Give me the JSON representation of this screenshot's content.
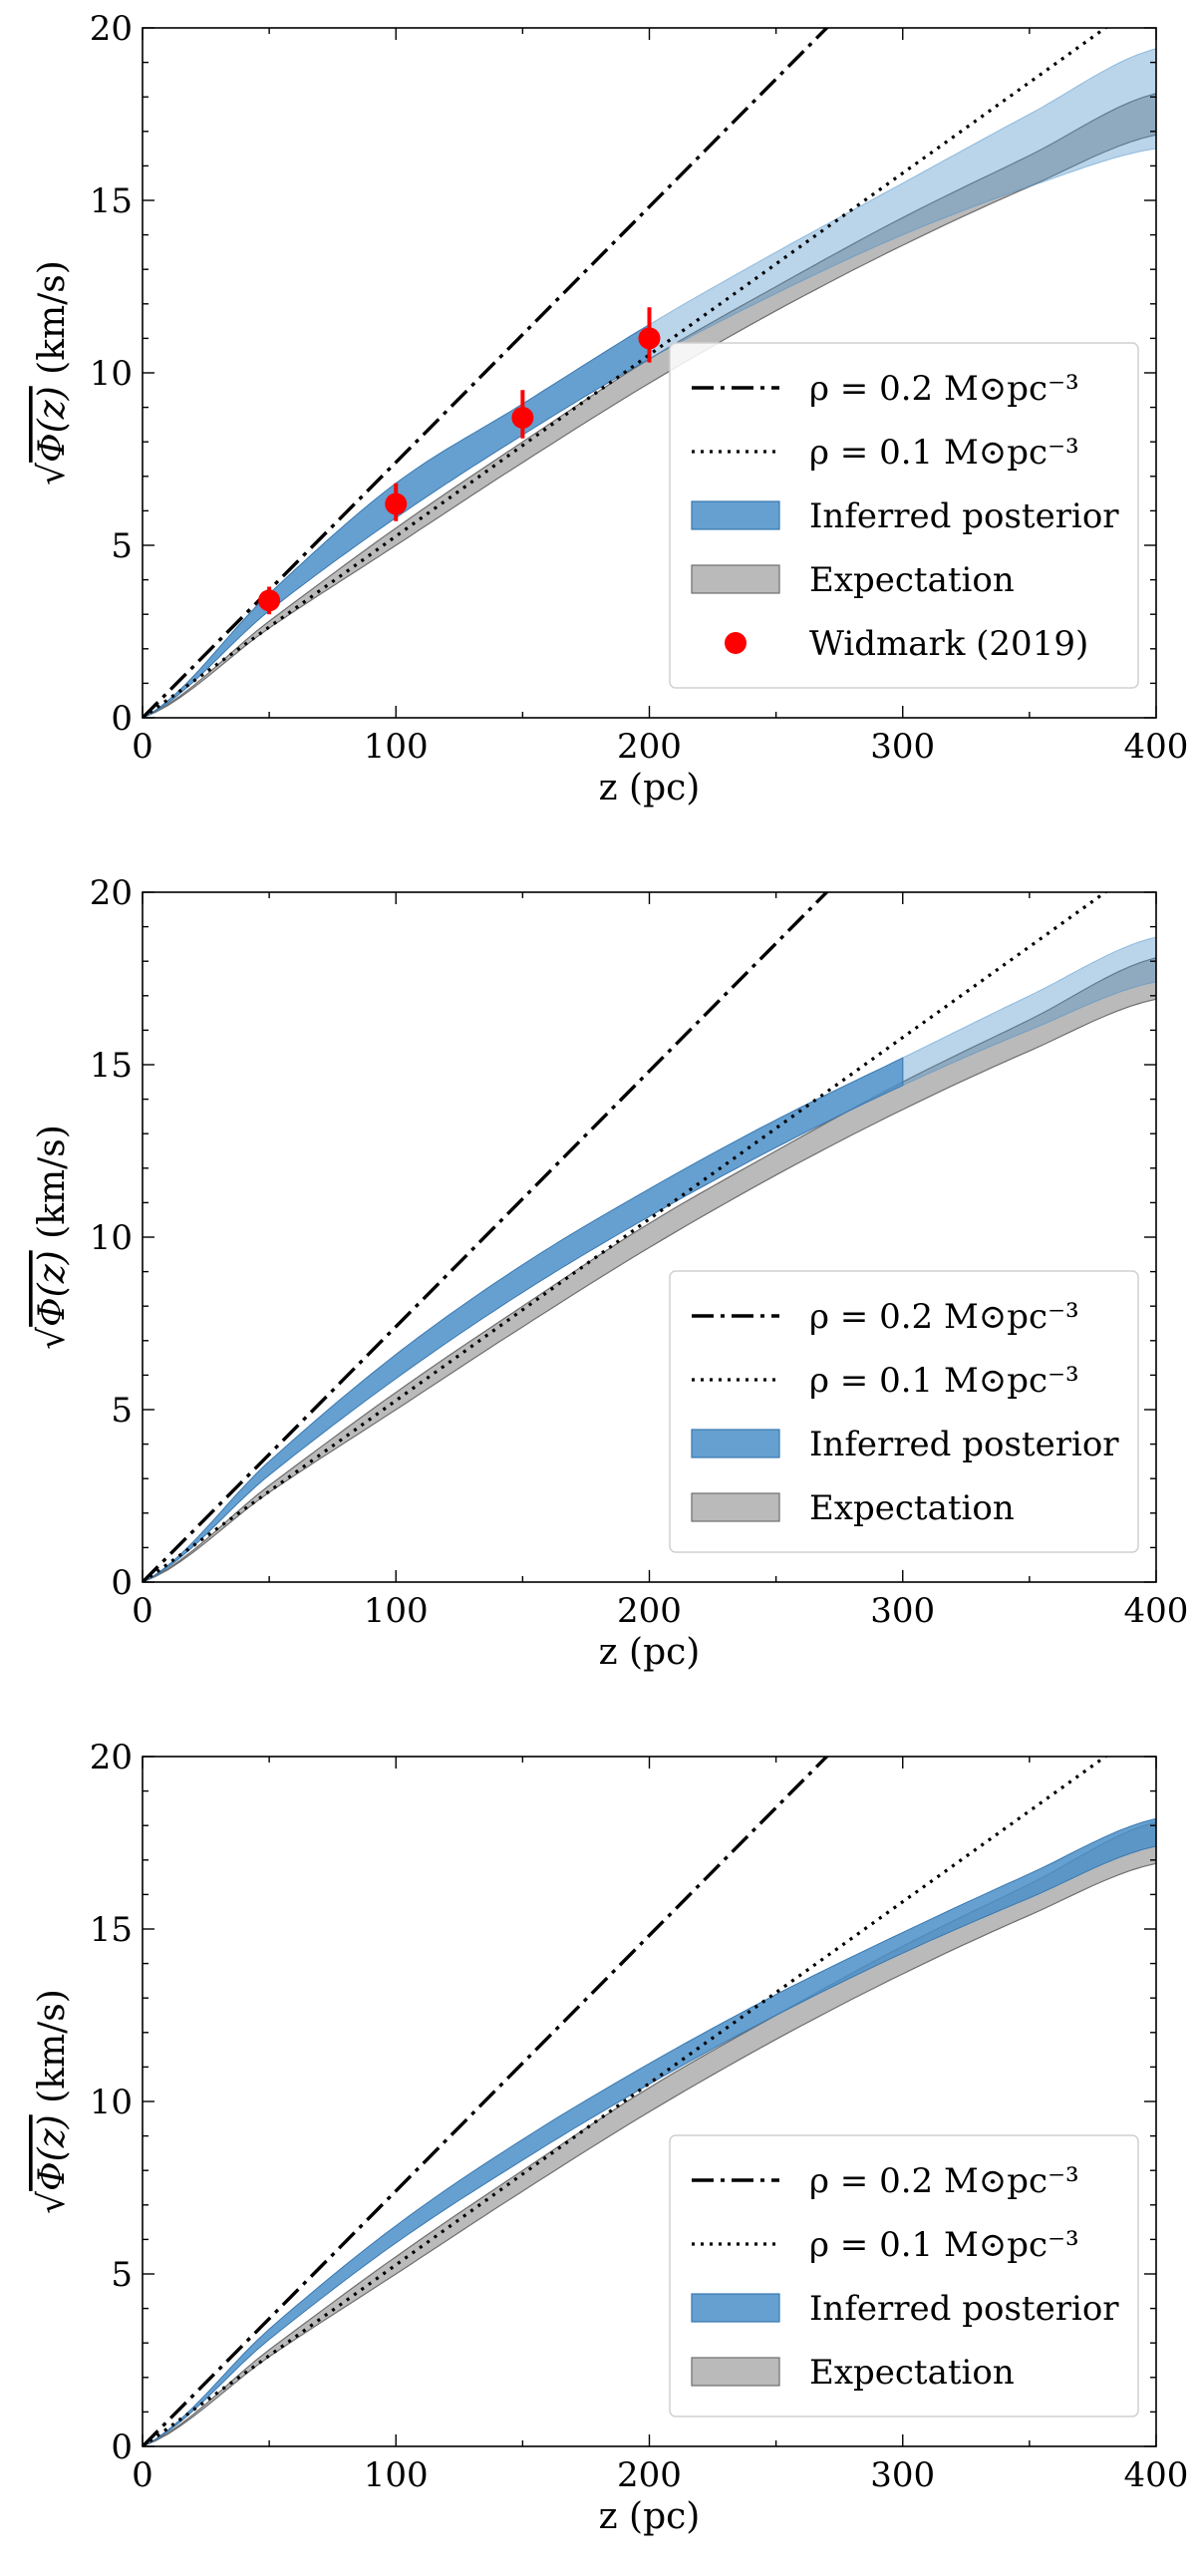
{
  "chart_data": [
    {
      "type": "line",
      "panel": "top",
      "title": "",
      "xlabel": "z (pc)",
      "ylabel_prefix": "√",
      "ylabel_over": "Φ(z)",
      "ylabel_suffix": " (km/s)",
      "xlim": [
        0,
        400
      ],
      "ylim": [
        0,
        20
      ],
      "xticks": [
        0,
        100,
        200,
        300,
        400
      ],
      "yticks": [
        0,
        5,
        10,
        15,
        20
      ],
      "grid": false,
      "legend_position": "lower-right",
      "series": [
        {
          "name": "ρ = 0.2 M⊙pc⁻³",
          "style": "dashdot",
          "x": [
            0,
            50,
            100,
            150,
            200,
            270
          ],
          "y": [
            0,
            3.7,
            7.4,
            11.1,
            14.8,
            20.0
          ]
        },
        {
          "name": "ρ = 0.1 M⊙pc⁻³",
          "style": "dotted",
          "x": [
            0,
            50,
            100,
            200,
            300,
            380
          ],
          "y": [
            0,
            2.6,
            5.3,
            10.5,
            15.8,
            20.0
          ]
        },
        {
          "name": "Inferred posterior",
          "style": "band",
          "solid_until": 200,
          "x": [
            0,
            50,
            100,
            150,
            200,
            250,
            300,
            350,
            400
          ],
          "lower": [
            0,
            3.1,
            5.8,
            8.2,
            10.4,
            12.3,
            14.0,
            15.4,
            16.5
          ],
          "upper": [
            0,
            3.6,
            6.8,
            9.1,
            11.4,
            13.5,
            15.5,
            17.5,
            19.4
          ]
        },
        {
          "name": "Expectation",
          "style": "band",
          "x": [
            0,
            50,
            100,
            150,
            200,
            250,
            300,
            350,
            400
          ],
          "lower": [
            0,
            2.6,
            5.0,
            7.4,
            9.7,
            11.8,
            13.7,
            15.4,
            16.9
          ],
          "upper": [
            0,
            2.8,
            5.5,
            8.0,
            10.4,
            12.5,
            14.5,
            16.3,
            18.1
          ]
        },
        {
          "name": "Widmark (2019)",
          "style": "points",
          "x": [
            50,
            100,
            150,
            200
          ],
          "y": [
            3.4,
            6.2,
            8.7,
            11.0
          ],
          "yerr_low": [
            3.0,
            5.7,
            8.1,
            10.3
          ],
          "yerr_high": [
            3.8,
            6.8,
            9.5,
            11.9
          ]
        }
      ]
    },
    {
      "type": "line",
      "panel": "middle",
      "title": "",
      "xlabel": "z (pc)",
      "ylabel_prefix": "√",
      "ylabel_over": "Φ(z)",
      "ylabel_suffix": " (km/s)",
      "xlim": [
        0,
        400
      ],
      "ylim": [
        0,
        20
      ],
      "xticks": [
        0,
        100,
        200,
        300,
        400
      ],
      "yticks": [
        0,
        5,
        10,
        15,
        20
      ],
      "grid": false,
      "legend_position": "lower-right",
      "series": [
        {
          "name": "ρ = 0.2 M⊙pc⁻³",
          "style": "dashdot",
          "x": [
            0,
            50,
            100,
            150,
            200,
            270
          ],
          "y": [
            0,
            3.7,
            7.4,
            11.1,
            14.8,
            20.0
          ]
        },
        {
          "name": "ρ = 0.1 M⊙pc⁻³",
          "style": "dotted",
          "x": [
            0,
            50,
            100,
            200,
            300,
            380
          ],
          "y": [
            0,
            2.6,
            5.3,
            10.5,
            15.8,
            20.0
          ]
        },
        {
          "name": "Inferred posterior",
          "style": "band",
          "solid_until": 300,
          "x": [
            0,
            50,
            100,
            150,
            200,
            250,
            300,
            350,
            400
          ],
          "lower": [
            0,
            3.1,
            5.9,
            8.4,
            10.6,
            12.6,
            14.4,
            16.0,
            17.4
          ],
          "upper": [
            0,
            3.5,
            6.6,
            9.2,
            11.4,
            13.4,
            15.2,
            17.0,
            18.7
          ]
        },
        {
          "name": "Expectation",
          "style": "band",
          "x": [
            0,
            50,
            100,
            150,
            200,
            250,
            300,
            350,
            400
          ],
          "lower": [
            0,
            2.6,
            5.0,
            7.4,
            9.7,
            11.8,
            13.7,
            15.4,
            16.9
          ],
          "upper": [
            0,
            2.8,
            5.5,
            8.0,
            10.4,
            12.5,
            14.5,
            16.3,
            18.1
          ]
        }
      ]
    },
    {
      "type": "line",
      "panel": "bottom",
      "title": "",
      "xlabel": "z (pc)",
      "ylabel_prefix": "√",
      "ylabel_over": "Φ(z)",
      "ylabel_suffix": " (km/s)",
      "xlim": [
        0,
        400
      ],
      "ylim": [
        0,
        20
      ],
      "xticks": [
        0,
        100,
        200,
        300,
        400
      ],
      "yticks": [
        0,
        5,
        10,
        15,
        20
      ],
      "grid": false,
      "legend_position": "lower-right",
      "series": [
        {
          "name": "ρ = 0.2 M⊙pc⁻³",
          "style": "dashdot",
          "x": [
            0,
            50,
            100,
            150,
            200,
            270
          ],
          "y": [
            0,
            3.7,
            7.4,
            11.1,
            14.8,
            20.0
          ]
        },
        {
          "name": "ρ = 0.1 M⊙pc⁻³",
          "style": "dotted",
          "x": [
            0,
            50,
            100,
            200,
            300,
            380
          ],
          "y": [
            0,
            2.6,
            5.3,
            10.5,
            15.8,
            20.0
          ]
        },
        {
          "name": "Inferred posterior",
          "style": "band",
          "solid_until": 400,
          "x": [
            0,
            50,
            100,
            150,
            200,
            250,
            300,
            350,
            400
          ],
          "lower": [
            0,
            3.1,
            5.9,
            8.3,
            10.5,
            12.5,
            14.3,
            15.9,
            17.4
          ],
          "upper": [
            0,
            3.4,
            6.4,
            8.9,
            11.1,
            13.1,
            14.9,
            16.6,
            18.2
          ]
        },
        {
          "name": "Expectation",
          "style": "band",
          "x": [
            0,
            50,
            100,
            150,
            200,
            250,
            300,
            350,
            400
          ],
          "lower": [
            0,
            2.6,
            5.0,
            7.4,
            9.7,
            11.8,
            13.7,
            15.4,
            16.9
          ],
          "upper": [
            0,
            2.8,
            5.5,
            8.0,
            10.4,
            12.5,
            14.5,
            16.3,
            18.1
          ]
        }
      ]
    }
  ],
  "colors": {
    "posterior": "#4a8fc8",
    "posterior_edge": "#3a78b0",
    "expectation": "#8c8c8c",
    "points": "#ff0000",
    "axis": "#000000"
  }
}
